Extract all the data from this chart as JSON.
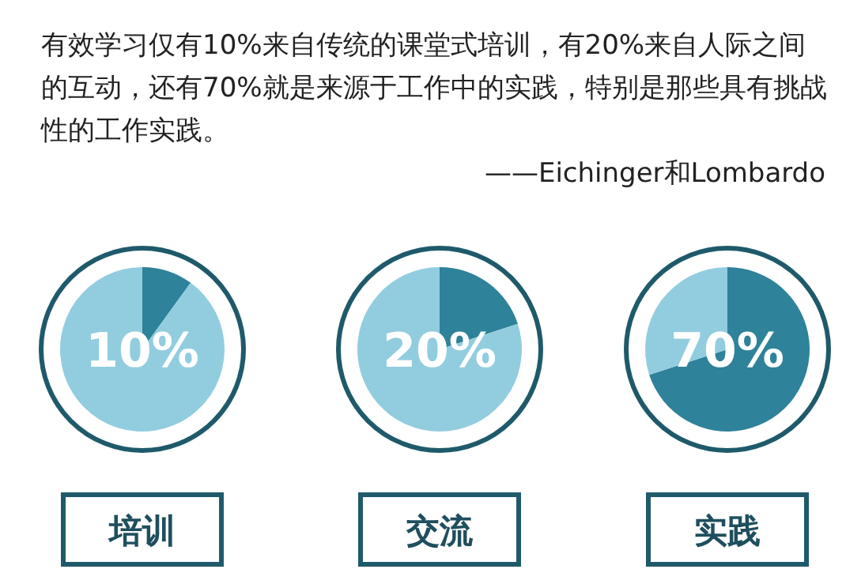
{
  "chart_data": [
    {
      "type": "other",
      "title": "有效学习仅有10%来自传统的课堂式培训，有20%来自人际之间的互动，还有70%就是来源于工作中的实践，特别是那些具有挑战性的工作实践。",
      "annotations": [
        "——Eichinger和Lombardo"
      ]
    },
    {
      "type": "pie",
      "title": "培训",
      "categories": [
        null,
        null
      ],
      "values": [
        10,
        90
      ],
      "colors": [
        "#2e8299",
        "#92cddf"
      ],
      "annotations": [
        "10%"
      ]
    },
    {
      "type": "pie",
      "title": "交流",
      "categories": [
        null,
        null
      ],
      "values": [
        20,
        80
      ],
      "colors": [
        "#2e8299",
        "#92cddf"
      ],
      "annotations": [
        "20%"
      ]
    },
    {
      "type": "pie",
      "title": "实践",
      "categories": [
        null,
        null
      ],
      "values": [
        70,
        30
      ],
      "colors": [
        "#2e8299",
        "#92cddf"
      ],
      "annotations": [
        "70%"
      ]
    }
  ]
}
